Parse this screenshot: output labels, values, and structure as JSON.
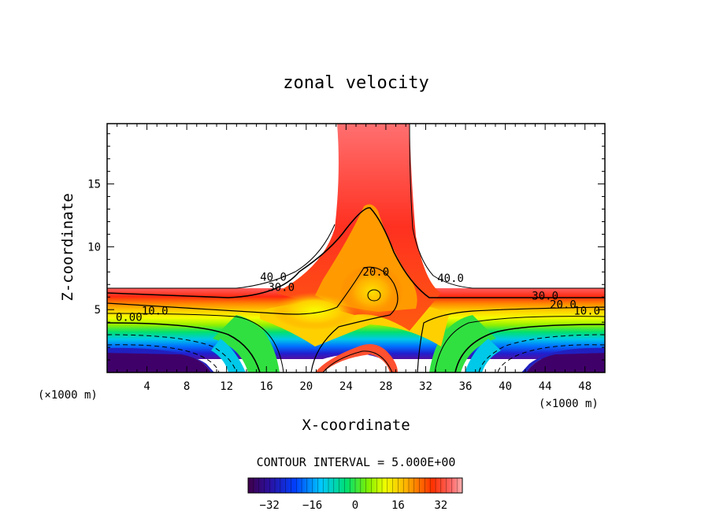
{
  "chart_data": {
    "type": "contour",
    "title": "zonal velocity",
    "xlabel": "X-coordinate",
    "ylabel": "Z-coordinate",
    "x_unit_left": "(×1000 m)",
    "x_unit_right": "(×1000 m)",
    "xlim": [
      0,
      50
    ],
    "ylim": [
      0,
      19.8
    ],
    "x_ticks": [
      4,
      8,
      12,
      16,
      20,
      24,
      28,
      32,
      36,
      40,
      44,
      48
    ],
    "y_ticks": [
      5,
      10,
      15
    ],
    "contour_interval_text": "CONTOUR INTERVAL = 5.000E+00",
    "contour_interval": 5.0,
    "contour_labels": [
      {
        "text": "40.0",
        "x": 16.7,
        "z": 7.3
      },
      {
        "text": "30.0",
        "x": 17.5,
        "z": 6.5
      },
      {
        "text": "20.0",
        "x": 27.0,
        "z": 7.7
      },
      {
        "text": "40.0",
        "x": 34.5,
        "z": 7.2
      },
      {
        "text": "10.0",
        "x": 4.8,
        "z": 4.6
      },
      {
        "text": "0.00",
        "x": 2.2,
        "z": 4.1
      },
      {
        "text": "30.0",
        "x": 44.0,
        "z": 5.8
      },
      {
        "text": "20.0",
        "x": 45.8,
        "z": 5.1
      },
      {
        "text": "10.0",
        "x": 48.2,
        "z": 4.6
      }
    ],
    "colorbar": {
      "min": -40,
      "max": 40,
      "tick_values": [
        -32,
        -16,
        0,
        16,
        32
      ],
      "tick_labels": [
        "−32",
        "−16",
        "0",
        "16",
        "32"
      ]
    }
  }
}
